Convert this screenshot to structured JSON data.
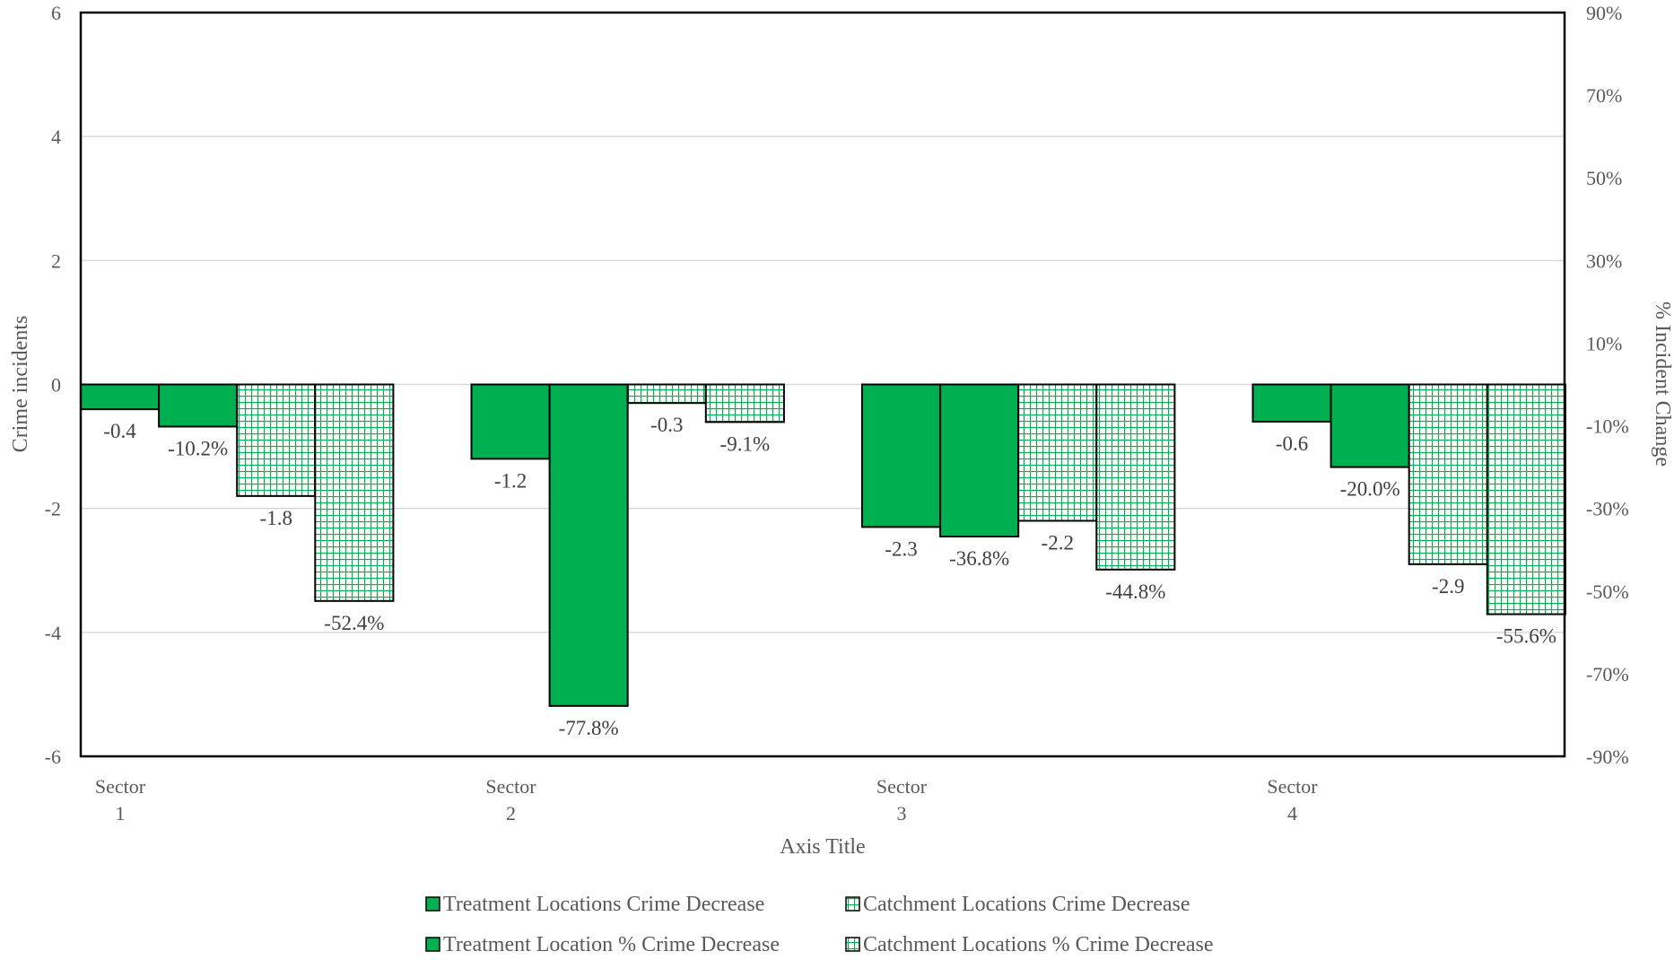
{
  "chart_data": {
    "type": "bar",
    "categories": [
      "Sector\n1",
      "Sector\n2",
      "Sector\n3",
      "Sector\n4"
    ],
    "xlabel": "Axis Title",
    "ylabel": "Crime incidents",
    "y2label": "% Incident Change",
    "ylim": [
      -6,
      6
    ],
    "y2lim": [
      -90,
      90
    ],
    "yticks": [
      "6",
      "4",
      "2",
      "0",
      "-2",
      "-4",
      "-6"
    ],
    "y2ticks": [
      "90%",
      "70%",
      "50%",
      "30%",
      "10%",
      "-10%",
      "-30%",
      "-50%",
      "-70%",
      "-90%"
    ],
    "grid": true,
    "legend_position": "bottom",
    "series": [
      {
        "name": "Treatment Locations Crime Decrease",
        "axis": "primary",
        "pattern": "solid",
        "values": [
          -0.4,
          -1.2,
          -2.3,
          -0.6
        ],
        "labels": [
          "-0.4",
          "-1.2",
          "-2.3",
          "-0.6"
        ]
      },
      {
        "name": "Treatment Location % Crime Decrease",
        "axis": "secondary",
        "pattern": "solid",
        "values": [
          -10.2,
          -77.8,
          -36.8,
          -20.0
        ],
        "labels": [
          "-10.2%",
          "-77.8%",
          "-36.8%",
          "-20.0%"
        ]
      },
      {
        "name": "Catchment Locations Crime Decrease",
        "axis": "primary",
        "pattern": "grid",
        "values": [
          -1.8,
          -0.3,
          -2.2,
          -2.9
        ],
        "labels": [
          "-1.8",
          "-0.3",
          "-2.2",
          "-2.9"
        ]
      },
      {
        "name": "Catchment Locations % Crime Decrease",
        "axis": "secondary",
        "pattern": "grid",
        "values": [
          -52.4,
          -9.1,
          -44.8,
          -55.6
        ],
        "labels": [
          "-52.4%",
          "-9.1%",
          "-44.8%",
          "-55.6%"
        ]
      }
    ],
    "legend_order": [
      0,
      2,
      1,
      3
    ],
    "colors": {
      "solid_fill": "#00b050",
      "grid_fill": "#ffffff",
      "grid_lines": "#00b050",
      "bar_border": "#000000",
      "frame": "#000000",
      "gridline": "#d9d9d9",
      "text": "#595959"
    }
  }
}
